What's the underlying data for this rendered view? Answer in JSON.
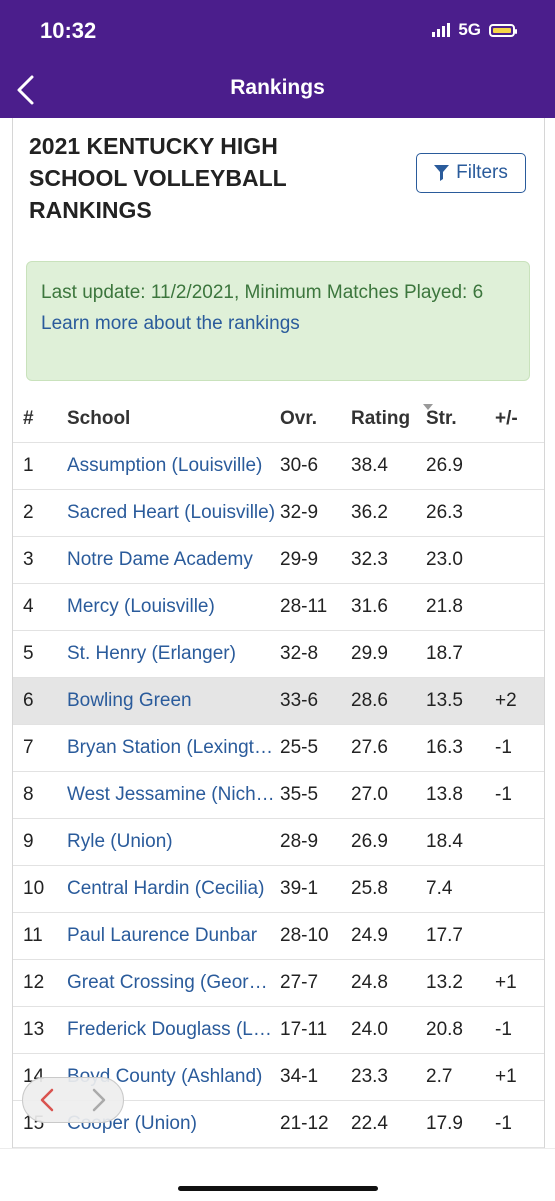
{
  "status_bar": {
    "time": "10:32",
    "network": "5G"
  },
  "nav": {
    "title": "Rankings"
  },
  "page": {
    "title": "2021 KENTUCKY HIGH SCHOOL VOLLEYBALL RANKINGS",
    "filters_label": "Filters"
  },
  "notice": {
    "update_text": "Last update: 11/2/2021, Minimum Matches Played: 6",
    "link_text": "Learn more about the rankings"
  },
  "table": {
    "headers": {
      "rank": "#",
      "school": "School",
      "ovr": "Ovr.",
      "rating": "Rating",
      "str": "Str.",
      "pm": "+/-"
    },
    "rows": [
      {
        "rank": "1",
        "school": "Assumption (Louisville)",
        "ovr": "30-6",
        "rating": "38.4",
        "str": "26.9",
        "pm": ""
      },
      {
        "rank": "2",
        "school": "Sacred Heart (Louisville)",
        "ovr": "32-9",
        "rating": "36.2",
        "str": "26.3",
        "pm": ""
      },
      {
        "rank": "3",
        "school": "Notre Dame Academy",
        "ovr": "29-9",
        "rating": "32.3",
        "str": "23.0",
        "pm": ""
      },
      {
        "rank": "4",
        "school": "Mercy (Louisville)",
        "ovr": "28-11",
        "rating": "31.6",
        "str": "21.8",
        "pm": ""
      },
      {
        "rank": "5",
        "school": "St. Henry (Erlanger)",
        "ovr": "32-8",
        "rating": "29.9",
        "str": "18.7",
        "pm": ""
      },
      {
        "rank": "6",
        "school": "Bowling Green",
        "ovr": "33-6",
        "rating": "28.6",
        "str": "13.5",
        "pm": "+2"
      },
      {
        "rank": "7",
        "school": "Bryan Station (Lexington)",
        "ovr": "25-5",
        "rating": "27.6",
        "str": "16.3",
        "pm": "-1"
      },
      {
        "rank": "8",
        "school": "West Jessamine (Nicholasville)",
        "ovr": "35-5",
        "rating": "27.0",
        "str": "13.8",
        "pm": "-1"
      },
      {
        "rank": "9",
        "school": "Ryle (Union)",
        "ovr": "28-9",
        "rating": "26.9",
        "str": "18.4",
        "pm": ""
      },
      {
        "rank": "10",
        "school": "Central Hardin (Cecilia)",
        "ovr": "39-1",
        "rating": "25.8",
        "str": "7.4",
        "pm": ""
      },
      {
        "rank": "11",
        "school": "Paul Laurence Dunbar",
        "ovr": "28-10",
        "rating": "24.9",
        "str": "17.7",
        "pm": ""
      },
      {
        "rank": "12",
        "school": "Great Crossing (Georgetown)",
        "ovr": "27-7",
        "rating": "24.8",
        "str": "13.2",
        "pm": "+1"
      },
      {
        "rank": "13",
        "school": "Frederick Douglass (Lexington)",
        "ovr": "17-11",
        "rating": "24.0",
        "str": "20.8",
        "pm": "-1"
      },
      {
        "rank": "14",
        "school": "Boyd County (Ashland)",
        "ovr": "34-1",
        "rating": "23.3",
        "str": "2.7",
        "pm": "+1"
      },
      {
        "rank": "15",
        "school": "Cooper (Union)",
        "ovr": "21-12",
        "rating": "22.4",
        "str": "17.9",
        "pm": "-1"
      }
    ]
  },
  "highlighted_rank": "6",
  "colors": {
    "header_purple": "#4b1e8c",
    "link_blue": "#2a5b9b",
    "notice_green_bg": "#dff0d8",
    "notice_green_text": "#3c763d"
  }
}
